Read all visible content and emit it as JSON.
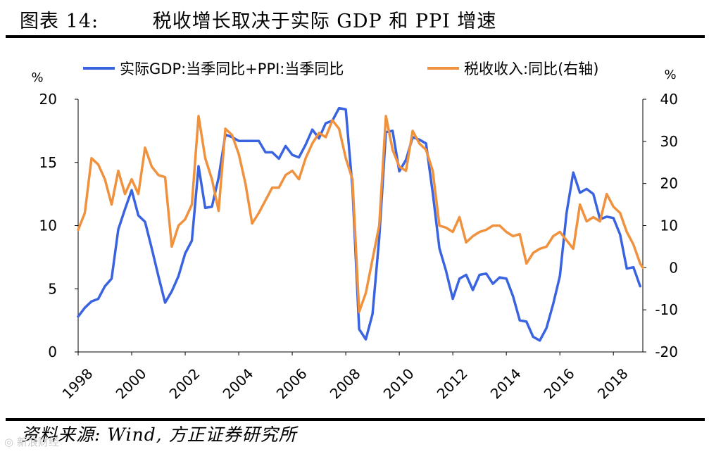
{
  "figure_title": "图表 14:        税收增长取决于实际 GDP 和 PPI 增速",
  "source_text": "资料来源: Wind, 方正证券研究所",
  "watermark": "◎ 新浪财经",
  "colors": {
    "gdp_ppi": "#3a63e0",
    "tax": "#f0913e",
    "axis": "#000000"
  },
  "chart_data": {
    "type": "line",
    "title": "",
    "xlabel": "",
    "ylabel_left": "%",
    "ylabel_right": "%",
    "xlim": [
      1998,
      2019.1
    ],
    "ylim_left": [
      0,
      20
    ],
    "ylim_right": [
      -20,
      40
    ],
    "x_ticks": [
      "1998",
      "2000",
      "2002",
      "2004",
      "2006",
      "2008",
      "2010",
      "2012",
      "2014",
      "2016",
      "2018"
    ],
    "y_ticks_left": [
      "0",
      "5",
      "10",
      "15",
      "20"
    ],
    "y_ticks_right": [
      "-20",
      "-10",
      "0",
      "10",
      "20",
      "30",
      "40"
    ],
    "legend_position": "top",
    "series": [
      {
        "name": "实际GDP:当季同比+PPI:当季同比",
        "axis": "left",
        "color": "#3a63e0",
        "points": [
          [
            1998.0,
            2.8
          ],
          [
            1998.25,
            3.5
          ],
          [
            1998.5,
            4.0
          ],
          [
            1998.75,
            4.2
          ],
          [
            1999.0,
            5.2
          ],
          [
            1999.25,
            5.8
          ],
          [
            1999.5,
            9.7
          ],
          [
            1999.75,
            11.3
          ],
          [
            2000.0,
            12.8
          ],
          [
            2000.25,
            10.8
          ],
          [
            2000.5,
            10.3
          ],
          [
            2000.75,
            8.2
          ],
          [
            2001.0,
            6.0
          ],
          [
            2001.25,
            3.9
          ],
          [
            2001.5,
            4.8
          ],
          [
            2001.75,
            6.0
          ],
          [
            2002.0,
            7.8
          ],
          [
            2002.25,
            8.8
          ],
          [
            2002.5,
            14.7
          ],
          [
            2002.75,
            11.4
          ],
          [
            2003.0,
            11.5
          ],
          [
            2003.25,
            13.8
          ],
          [
            2003.5,
            17.2
          ],
          [
            2003.75,
            17.0
          ],
          [
            2004.0,
            16.7
          ],
          [
            2004.25,
            16.7
          ],
          [
            2004.5,
            16.7
          ],
          [
            2004.75,
            16.7
          ],
          [
            2005.0,
            15.8
          ],
          [
            2005.25,
            15.8
          ],
          [
            2005.5,
            15.3
          ],
          [
            2005.75,
            16.3
          ],
          [
            2006.0,
            15.6
          ],
          [
            2006.25,
            15.4
          ],
          [
            2006.5,
            16.4
          ],
          [
            2006.75,
            17.6
          ],
          [
            2007.0,
            16.9
          ],
          [
            2007.25,
            18.1
          ],
          [
            2007.5,
            18.3
          ],
          [
            2007.75,
            19.3
          ],
          [
            2008.0,
            19.2
          ],
          [
            2008.25,
            13.0
          ],
          [
            2008.5,
            1.8
          ],
          [
            2008.75,
            1.0
          ],
          [
            2009.0,
            3.0
          ],
          [
            2009.25,
            9.0
          ],
          [
            2009.5,
            17.4
          ],
          [
            2009.75,
            17.5
          ],
          [
            2010.0,
            14.3
          ],
          [
            2010.25,
            15.2
          ],
          [
            2010.5,
            17.0
          ],
          [
            2010.75,
            16.8
          ],
          [
            2011.0,
            16.5
          ],
          [
            2011.25,
            12.6
          ],
          [
            2011.5,
            8.2
          ],
          [
            2011.75,
            6.4
          ],
          [
            2012.0,
            4.2
          ],
          [
            2012.25,
            5.8
          ],
          [
            2012.5,
            6.1
          ],
          [
            2012.75,
            4.9
          ],
          [
            2013.0,
            6.1
          ],
          [
            2013.25,
            6.2
          ],
          [
            2013.5,
            5.4
          ],
          [
            2013.75,
            5.9
          ],
          [
            2014.0,
            5.8
          ],
          [
            2014.25,
            4.4
          ],
          [
            2014.5,
            2.5
          ],
          [
            2014.75,
            2.4
          ],
          [
            2015.0,
            1.2
          ],
          [
            2015.25,
            0.9
          ],
          [
            2015.5,
            1.9
          ],
          [
            2015.75,
            3.8
          ],
          [
            2016.0,
            6.0
          ],
          [
            2016.25,
            11.0
          ],
          [
            2016.5,
            14.2
          ],
          [
            2016.75,
            12.6
          ],
          [
            2017.0,
            12.9
          ],
          [
            2017.25,
            12.5
          ],
          [
            2017.5,
            10.5
          ],
          [
            2017.75,
            10.7
          ],
          [
            2018.0,
            10.6
          ],
          [
            2018.25,
            9.3
          ],
          [
            2018.5,
            6.6
          ],
          [
            2018.75,
            6.7
          ],
          [
            2019.0,
            5.2
          ]
        ]
      },
      {
        "name": "税收收入:同比(右轴)",
        "axis": "right",
        "color": "#f0913e",
        "points": [
          [
            1998.0,
            9.0
          ],
          [
            1998.25,
            13.0
          ],
          [
            1998.5,
            26.0
          ],
          [
            1998.75,
            24.5
          ],
          [
            1999.0,
            21.0
          ],
          [
            1999.25,
            15.0
          ],
          [
            1999.5,
            23.0
          ],
          [
            1999.75,
            17.5
          ],
          [
            2000.0,
            21.0
          ],
          [
            2000.25,
            17.5
          ],
          [
            2000.5,
            28.5
          ],
          [
            2000.75,
            24.0
          ],
          [
            2001.0,
            22.0
          ],
          [
            2001.25,
            21.5
          ],
          [
            2001.5,
            5.0
          ],
          [
            2001.75,
            10.0
          ],
          [
            2002.0,
            11.5
          ],
          [
            2002.25,
            15.0
          ],
          [
            2002.5,
            36.0
          ],
          [
            2002.75,
            26.0
          ],
          [
            2003.0,
            21.0
          ],
          [
            2003.25,
            13.5
          ],
          [
            2003.5,
            33.0
          ],
          [
            2003.75,
            31.5
          ],
          [
            2004.0,
            27.0
          ],
          [
            2004.25,
            20.0
          ],
          [
            2004.5,
            10.5
          ],
          [
            2004.75,
            13.0
          ],
          [
            2005.0,
            16.0
          ],
          [
            2005.25,
            19.0
          ],
          [
            2005.5,
            19.0
          ],
          [
            2005.75,
            22.0
          ],
          [
            2006.0,
            23.0
          ],
          [
            2006.25,
            21.0
          ],
          [
            2006.5,
            26.0
          ],
          [
            2006.75,
            29.5
          ],
          [
            2007.0,
            32.0
          ],
          [
            2007.25,
            31.0
          ],
          [
            2007.5,
            35.0
          ],
          [
            2007.75,
            33.0
          ],
          [
            2008.0,
            26.0
          ],
          [
            2008.25,
            21.0
          ],
          [
            2008.5,
            -10.5
          ],
          [
            2008.75,
            -6.0
          ],
          [
            2009.0,
            2.0
          ],
          [
            2009.25,
            10.0
          ],
          [
            2009.5,
            36.0
          ],
          [
            2009.75,
            28.0
          ],
          [
            2010.0,
            24.0
          ],
          [
            2010.25,
            23.0
          ],
          [
            2010.5,
            32.5
          ],
          [
            2010.75,
            29.5
          ],
          [
            2011.0,
            28.0
          ],
          [
            2011.25,
            23.0
          ],
          [
            2011.5,
            10.0
          ],
          [
            2011.75,
            9.5
          ],
          [
            2012.0,
            8.5
          ],
          [
            2012.25,
            12.0
          ],
          [
            2012.5,
            6.0
          ],
          [
            2012.75,
            7.5
          ],
          [
            2013.0,
            8.5
          ],
          [
            2013.25,
            9.0
          ],
          [
            2013.5,
            10.0
          ],
          [
            2013.75,
            10.0
          ],
          [
            2014.0,
            8.5
          ],
          [
            2014.25,
            7.5
          ],
          [
            2014.5,
            8.0
          ],
          [
            2014.75,
            1.0
          ],
          [
            2015.0,
            3.5
          ],
          [
            2015.25,
            4.5
          ],
          [
            2015.5,
            5.0
          ],
          [
            2015.75,
            7.5
          ],
          [
            2016.0,
            8.5
          ],
          [
            2016.25,
            6.5
          ],
          [
            2016.5,
            4.5
          ],
          [
            2016.75,
            15.0
          ],
          [
            2017.0,
            11.0
          ],
          [
            2017.25,
            12.0
          ],
          [
            2017.5,
            11.0
          ],
          [
            2017.75,
            17.5
          ],
          [
            2018.0,
            14.5
          ],
          [
            2018.25,
            13.0
          ],
          [
            2018.5,
            8.5
          ],
          [
            2018.75,
            5.5
          ],
          [
            2019.0,
            1.0
          ],
          [
            2019.1,
            0.0
          ]
        ]
      }
    ]
  }
}
